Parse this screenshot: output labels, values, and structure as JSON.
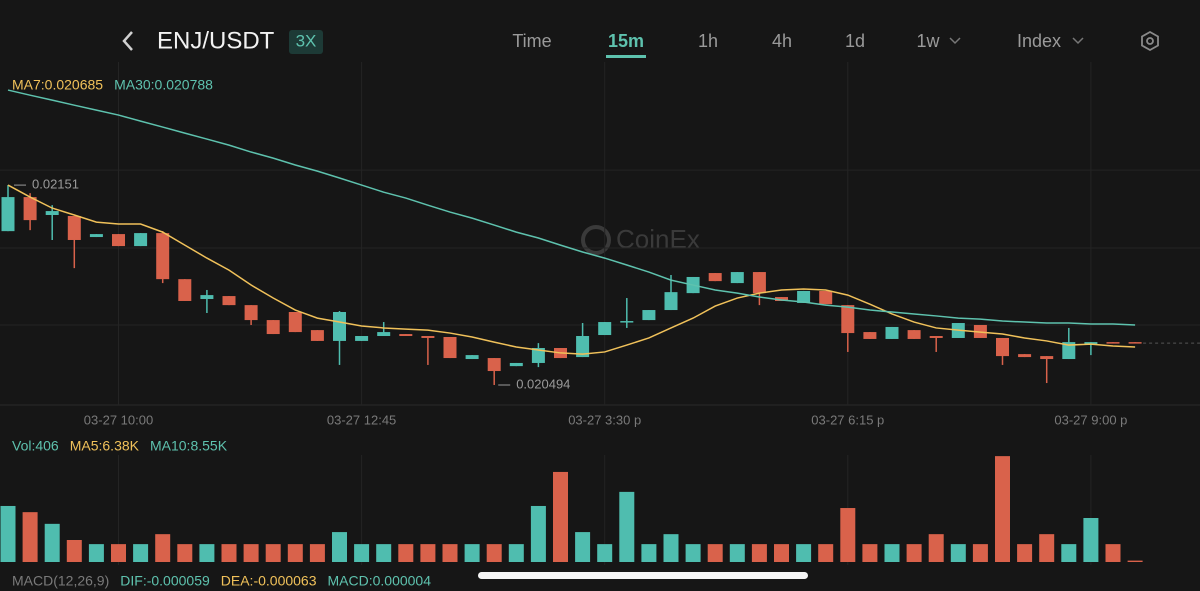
{
  "header": {
    "symbol": "ENJ/USDT",
    "leverage": "3X",
    "tabs": [
      "Time",
      "15m",
      "1h",
      "4h",
      "1d",
      "1w",
      "Index"
    ],
    "active_tab": 1
  },
  "watermark": "CoinEx",
  "chart_data": [
    {
      "type": "candlestick",
      "up_color": "#4fbdaf",
      "down_color": "#d9624b",
      "ylim": [
        0.0204,
        0.0221
      ],
      "grid_lines_y": [
        0.021586,
        0.02119,
        0.020799
      ],
      "categories": [
        null,
        null,
        null,
        null,
        null,
        "03-27 10:00",
        null,
        null,
        null,
        null,
        null,
        null,
        null,
        null,
        null,
        null,
        "03-27 12:45",
        null,
        null,
        null,
        null,
        null,
        null,
        null,
        null,
        null,
        null,
        "03-27 3:30 p",
        null,
        null,
        null,
        null,
        null,
        null,
        null,
        null,
        null,
        null,
        "03-27 6:15 p",
        null,
        null,
        null,
        null,
        null,
        null,
        null,
        null,
        null,
        null,
        "03-27 9:00 p",
        null,
        null
      ],
      "open": [
        0.021276,
        0.021449,
        0.021358,
        0.021353,
        0.021246,
        0.021261,
        0.0212,
        0.021266,
        0.021032,
        0.020931,
        0.020946,
        0.0209,
        0.020824,
        0.020865,
        0.020773,
        0.020718,
        0.020718,
        0.020743,
        0.020753,
        0.020743,
        0.020738,
        0.020626,
        0.020631,
        0.02059,
        0.020606,
        0.020682,
        0.020636,
        0.020748,
        0.020814,
        0.020824,
        0.020875,
        0.020961,
        0.021063,
        0.021012,
        0.021068,
        0.020941,
        0.020911,
        0.020972,
        0.0209,
        0.020763,
        0.020728,
        0.020773,
        0.020743,
        0.020733,
        0.020799,
        0.020733,
        0.020651,
        0.020641,
        0.020626,
        0.020702,
        0.020712,
        0.020712
      ],
      "high": [
        0.02151,
        0.021469,
        0.021408,
        0.021353,
        0.021261,
        0.021261,
        0.021266,
        0.021276,
        0.021032,
        0.020977,
        0.020946,
        0.0209,
        0.020824,
        0.020865,
        0.020773,
        0.02087,
        0.020743,
        0.020814,
        0.020753,
        0.020743,
        0.020738,
        0.020646,
        0.020631,
        0.020606,
        0.020707,
        0.020682,
        0.020809,
        0.020814,
        0.020936,
        0.020875,
        0.021053,
        0.021043,
        0.021063,
        0.021068,
        0.021068,
        0.020941,
        0.020972,
        0.020972,
        0.0209,
        0.020763,
        0.020789,
        0.020773,
        0.020743,
        0.020809,
        0.020799,
        0.020733,
        0.020651,
        0.020641,
        0.020784,
        0.020712,
        0.020712,
        0.020712
      ],
      "low": [
        0.021276,
        0.021281,
        0.021231,
        0.021088,
        0.021246,
        0.0212,
        0.0212,
        0.021012,
        0.020921,
        0.02086,
        0.0209,
        0.020799,
        0.020753,
        0.020763,
        0.020718,
        0.020596,
        0.020718,
        0.020743,
        0.020743,
        0.020596,
        0.020631,
        0.020626,
        0.020494,
        0.02059,
        0.020585,
        0.020631,
        0.020636,
        0.020748,
        0.020784,
        0.020824,
        0.020875,
        0.020961,
        0.021022,
        0.021012,
        0.0209,
        0.020921,
        0.020911,
        0.020905,
        0.020662,
        0.020728,
        0.020728,
        0.020728,
        0.020662,
        0.020733,
        0.020733,
        0.020596,
        0.020636,
        0.020504,
        0.020626,
        0.020646,
        0.020707,
        0.020707
      ],
      "close": [
        0.021449,
        0.021332,
        0.021378,
        0.021231,
        0.021261,
        0.0212,
        0.021266,
        0.021032,
        0.020921,
        0.020951,
        0.0209,
        0.020824,
        0.020753,
        0.020763,
        0.020718,
        0.020865,
        0.020743,
        0.020763,
        0.020743,
        0.020733,
        0.020631,
        0.020646,
        0.020565,
        0.020606,
        0.020682,
        0.020631,
        0.020743,
        0.020814,
        0.020819,
        0.020875,
        0.020966,
        0.021043,
        0.021022,
        0.021068,
        0.020961,
        0.020921,
        0.020972,
        0.020905,
        0.020758,
        0.020728,
        0.020789,
        0.020728,
        0.020733,
        0.020809,
        0.020733,
        0.020641,
        0.020636,
        0.020626,
        0.020712,
        0.020712,
        0.020707,
        0.020707
      ],
      "max_label": 0.02151,
      "min_label": 0.020494,
      "series": [
        {
          "name": "MA7:0.020685",
          "color": "#f0c15a",
          "values": [
            0.02151,
            0.021449,
            0.021393,
            0.021358,
            0.021322,
            0.021312,
            0.021312,
            0.021271,
            0.021205,
            0.021139,
            0.021078,
            0.021002,
            0.020936,
            0.020875,
            0.020834,
            0.020814,
            0.020794,
            0.020784,
            0.020778,
            0.020773,
            0.020758,
            0.020738,
            0.020712,
            0.020687,
            0.020672,
            0.020657,
            0.020651,
            0.020662,
            0.020697,
            0.020733,
            0.020784,
            0.020834,
            0.020895,
            0.020936,
            0.020961,
            0.020977,
            0.020982,
            0.020977,
            0.020951,
            0.020905,
            0.020855,
            0.020814,
            0.020784,
            0.020773,
            0.020763,
            0.020753,
            0.020733,
            0.020718,
            0.020697,
            0.020702,
            0.020692,
            0.020687
          ]
        },
        {
          "name": "MA30:0.020788",
          "color": "#5ec2ae",
          "values": [
            0.021993,
            0.021967,
            0.021942,
            0.021916,
            0.021891,
            0.021866,
            0.021835,
            0.021805,
            0.021774,
            0.021744,
            0.021713,
            0.021678,
            0.021647,
            0.021612,
            0.021581,
            0.021546,
            0.02151,
            0.021474,
            0.021444,
            0.021408,
            0.021373,
            0.021342,
            0.021307,
            0.021271,
            0.021241,
            0.021205,
            0.02117,
            0.021139,
            0.021104,
            0.021068,
            0.021027,
            0.021002,
            0.020977,
            0.020961,
            0.020941,
            0.020926,
            0.020916,
            0.0209,
            0.02089,
            0.020875,
            0.020865,
            0.020855,
            0.020845,
            0.020834,
            0.020829,
            0.020819,
            0.020814,
            0.020809,
            0.020809,
            0.020804,
            0.020804,
            0.020799
          ]
        }
      ]
    },
    {
      "type": "volume",
      "ylim": [
        0,
        32000
      ],
      "legend": [
        {
          "text": "Vol:406",
          "color": "#5ec2ae"
        },
        {
          "text": "MA5:6.38K",
          "color": "#f0c15a"
        },
        {
          "text": "MA10:8.55K",
          "color": "#5ec2ae"
        }
      ],
      "values": [
        16300,
        14500,
        11100,
        6400,
        5200,
        5200,
        5200,
        8100,
        5200,
        5200,
        5200,
        5200,
        5200,
        5200,
        5200,
        8700,
        5200,
        5200,
        5200,
        5200,
        5200,
        5200,
        5200,
        5200,
        16300,
        26200,
        8700,
        5200,
        20400,
        5200,
        8100,
        5200,
        5200,
        5200,
        5200,
        5200,
        5200,
        5200,
        15700,
        5200,
        5200,
        5200,
        8100,
        5200,
        5200,
        30800,
        5200,
        8100,
        5200,
        12800,
        5200,
        406
      ]
    }
  ],
  "macd_legend": [
    {
      "text": "MACD(12,26,9)",
      "color": "#7a7a7a"
    },
    {
      "text": "DIF:-0.000059",
      "color": "#5ec2ae"
    },
    {
      "text": "DEA:-0.000063",
      "color": "#f0c15a"
    },
    {
      "text": "MACD:0.000004",
      "color": "#5ec2ae"
    }
  ]
}
